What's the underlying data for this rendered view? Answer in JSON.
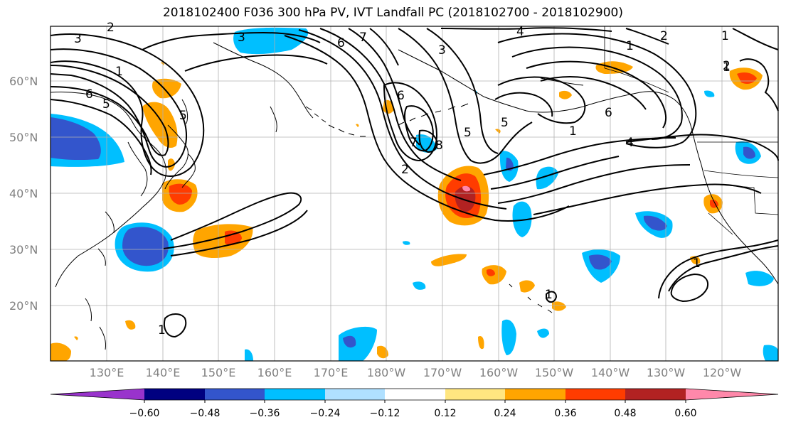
{
  "title": "2018102400 F036 300 hPa PV, IVT Landfall PC (2018102700 - 2018102900)",
  "lat_labels": [
    "60°N",
    "50°N",
    "40°N",
    "30°N",
    "20°N"
  ],
  "lon_labels": [
    "130°E",
    "140°E",
    "150°E",
    "160°E",
    "170°E",
    "180°W",
    "170°W",
    "160°W",
    "150°W",
    "140°W",
    "130°W",
    "120°W"
  ],
  "colorbar": {
    "ticks": [
      "−0.60",
      "−0.48",
      "−0.36",
      "−0.24",
      "−0.12",
      "0.12",
      "0.24",
      "0.36",
      "0.48",
      "0.60"
    ],
    "colors": [
      "#9933cc",
      "#000080",
      "#3355cc",
      "#00bfff",
      "#b0e0ff",
      "#ffffff",
      "#ffe680",
      "#ffa500",
      "#ff3c00",
      "#b22222",
      "#ff88aa"
    ]
  },
  "contour_labels": [
    "3",
    "2",
    "3",
    "6",
    "1",
    "7",
    "4",
    "1",
    "2",
    "6",
    "5",
    "1",
    "6",
    "5",
    "8",
    "2",
    "5",
    "7",
    "3",
    "6",
    "1",
    "4",
    "1",
    "1",
    "5",
    "1",
    "1",
    "2"
  ],
  "colors": {
    "neg_strong": "#3355cc",
    "neg": "#00bfff",
    "pos": "#ffa500",
    "pos_strong": "#ff3c00",
    "pos_max": "#b22222"
  }
}
